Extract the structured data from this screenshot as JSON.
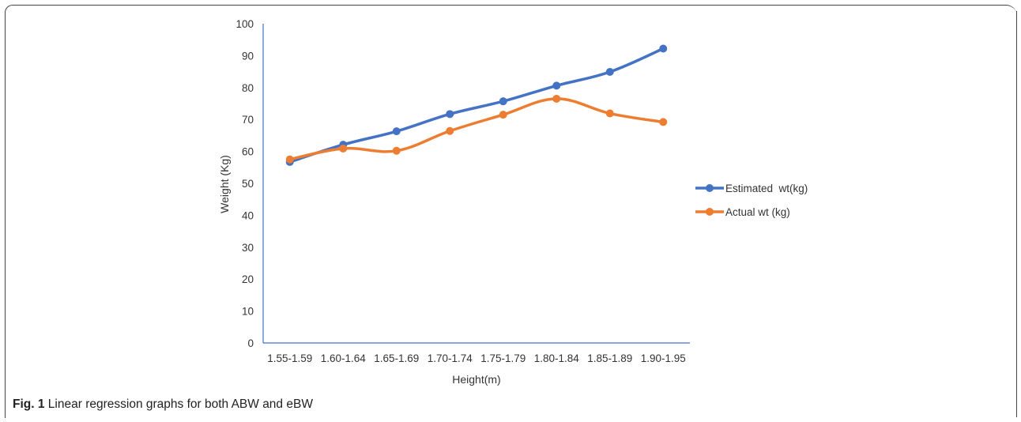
{
  "caption": {
    "label": "Fig. 1",
    "text": "Linear regression graphs for both ABW and eBW"
  },
  "chart_data": {
    "type": "line",
    "title": "",
    "xlabel": "Height(m)",
    "ylabel": "Weight (Kg)",
    "ylim": [
      0,
      100
    ],
    "yticks": [
      0,
      10,
      20,
      30,
      40,
      50,
      60,
      70,
      80,
      90,
      100
    ],
    "grid": false,
    "legend": "right",
    "categories": [
      "1.55-1.59",
      "1.60-1.64",
      "1.65-1.69",
      "1.70-1.74",
      "1.75-1.79",
      "1.80-1.84",
      "1.85-1.89",
      "1.90-1.95"
    ],
    "series": [
      {
        "name": "Estimated  wt(kg)",
        "color": "#4472c4",
        "values": [
          56.7,
          62.1,
          66.3,
          71.7,
          75.7,
          80.6,
          84.9,
          92.2
        ]
      },
      {
        "name": "Actual wt (kg)",
        "color": "#ed7d31",
        "values": [
          57.5,
          60.9,
          60.2,
          66.4,
          71.5,
          76.5,
          71.9,
          69.2
        ]
      }
    ]
  }
}
